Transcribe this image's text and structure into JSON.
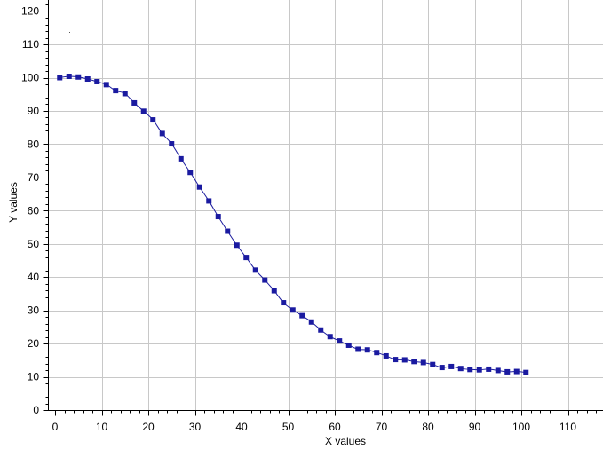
{
  "chart_data": {
    "type": "scatter",
    "title": "",
    "xlabel": "X values",
    "ylabel": "Y values",
    "xlim": [
      0,
      118
    ],
    "ylim": [
      0,
      124
    ],
    "xticks": [
      0,
      10,
      20,
      30,
      40,
      50,
      60,
      70,
      80,
      90,
      100,
      110
    ],
    "yticks": [
      0,
      10,
      20,
      30,
      40,
      50,
      60,
      70,
      80,
      90,
      100,
      110,
      120
    ],
    "grid": true,
    "legend": "none",
    "colors": {
      "series": "#1c1c9e",
      "marker": "#1a1aa0",
      "grid": "#c8c8c8",
      "axis": "#000000"
    },
    "series": [
      {
        "line": true,
        "marker": "square",
        "x": [
          1,
          3,
          5,
          7,
          9,
          11,
          13,
          15,
          17,
          19,
          21,
          23,
          25,
          27,
          29,
          31,
          33,
          35,
          37,
          39,
          41,
          43,
          45,
          47,
          49,
          51,
          53,
          55,
          57,
          59,
          61,
          63,
          65,
          67,
          69,
          71,
          73,
          75,
          77,
          79,
          81,
          83,
          85,
          87,
          89,
          91,
          93,
          95,
          97,
          99,
          101
        ],
        "y": [
          100,
          100.4,
          100.2,
          99.6,
          98.8,
          97.9,
          96.1,
          95.2,
          92.4,
          89.9,
          87.3,
          83.2,
          80.1,
          75.6,
          71.5,
          67.1,
          62.9,
          58.2,
          53.8,
          49.6,
          45.9,
          42.1,
          39.1,
          35.9,
          32.3,
          30.1,
          28.4,
          26.5,
          24.1,
          22.1,
          20.8,
          19.5,
          18.3,
          18.1,
          17.3,
          16.3,
          15.2,
          15.1,
          14.6,
          14.3,
          13.7,
          12.8,
          13.1,
          12.5,
          12.2,
          12.1,
          12.3,
          11.9,
          11.5,
          11.6,
          11.3
        ]
      }
    ]
  }
}
